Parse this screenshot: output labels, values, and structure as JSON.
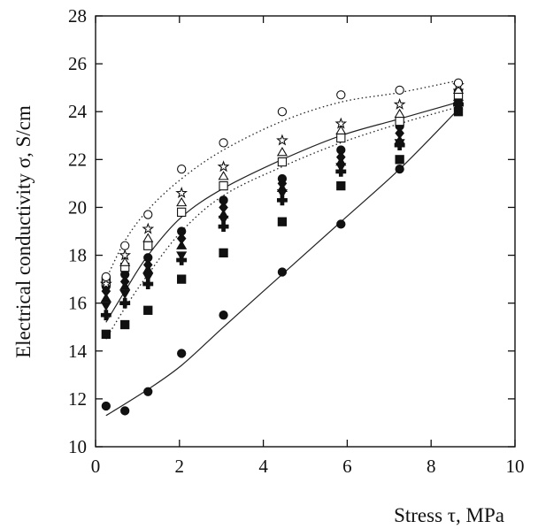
{
  "chart_data": {
    "type": "scatter",
    "xlabel": "Stress τ, MPa",
    "ylabel": "Electrical conductivity σ, S/cm",
    "xlim": [
      0,
      10
    ],
    "ylim": [
      10,
      28
    ],
    "x_ticks": [
      "0",
      "2",
      "4",
      "6",
      "8",
      "10"
    ],
    "y_ticks": [
      "10",
      "12",
      "14",
      "16",
      "18",
      "20",
      "22",
      "24",
      "26",
      "28"
    ],
    "grid": false,
    "x": [
      0.25,
      0.7,
      1.25,
      2.05,
      3.05,
      4.45,
      5.85,
      7.25,
      8.65
    ],
    "series": [
      {
        "marker": "filled-circle",
        "values": [
          11.7,
          11.5,
          12.3,
          13.9,
          15.5,
          17.3,
          19.3,
          21.6,
          24.1
        ]
      },
      {
        "marker": "filled-square",
        "values": [
          14.7,
          15.1,
          15.7,
          17.0,
          18.1,
          19.4,
          20.9,
          22.0,
          24.0
        ]
      },
      {
        "marker": "filled-plus",
        "values": [
          15.5,
          16.0,
          16.8,
          17.8,
          19.2,
          20.3,
          21.5,
          22.6,
          24.3
        ]
      },
      {
        "marker": "filled-triangle-down",
        "values": [
          15.9,
          16.4,
          17.1,
          18.0,
          19.5,
          20.6,
          21.7,
          22.7,
          24.8
        ]
      },
      {
        "marker": "filled-triangle-up",
        "values": [
          16.2,
          16.7,
          17.4,
          18.4,
          19.7,
          20.8,
          21.9,
          22.8,
          24.6
        ]
      },
      {
        "marker": "filled-diamond",
        "values": [
          16.5,
          16.9,
          17.6,
          18.7,
          20.0,
          21.0,
          22.1,
          23.1,
          24.4
        ]
      },
      {
        "marker": "filled-circle-b",
        "values": [
          16.7,
          17.2,
          17.9,
          19.0,
          20.3,
          21.2,
          22.4,
          23.4,
          24.5
        ]
      },
      {
        "marker": "open-square",
        "values": [
          16.9,
          17.5,
          18.4,
          19.8,
          20.9,
          21.9,
          22.9,
          23.6,
          24.7
        ]
      },
      {
        "marker": "open-triangle",
        "values": [
          17.0,
          17.7,
          18.7,
          20.2,
          21.3,
          22.3,
          23.2,
          23.9,
          24.9
        ]
      },
      {
        "marker": "open-star",
        "values": [
          16.8,
          18.0,
          19.1,
          20.6,
          21.7,
          22.8,
          23.5,
          24.3,
          25.1
        ]
      },
      {
        "marker": "open-circle",
        "values": [
          17.1,
          18.4,
          19.7,
          21.6,
          22.7,
          24.0,
          24.7,
          24.9,
          25.2
        ]
      }
    ],
    "curves": [
      {
        "style": "solid",
        "x": [
          0.25,
          1.25,
          2.05,
          3.05,
          4.45,
          5.85,
          7.25,
          8.65
        ],
        "values": [
          11.3,
          12.4,
          13.4,
          15.0,
          17.2,
          19.4,
          21.6,
          24.1
        ]
      },
      {
        "style": "solid",
        "x": [
          0.25,
          0.7,
          1.25,
          2.05,
          3.05,
          4.45,
          5.85,
          7.25,
          8.65
        ],
        "values": [
          15.2,
          16.5,
          18.0,
          19.6,
          20.8,
          22.0,
          23.0,
          23.7,
          24.4
        ]
      },
      {
        "style": "dotted",
        "x": [
          0.25,
          0.7,
          1.25,
          2.05,
          3.05,
          4.45,
          5.85,
          7.25,
          8.65
        ],
        "values": [
          17.0,
          18.6,
          19.9,
          21.2,
          22.4,
          23.6,
          24.4,
          24.8,
          25.3
        ]
      },
      {
        "style": "dotted",
        "x": [
          0.25,
          0.7,
          1.25,
          2.05,
          3.05,
          4.45,
          5.85,
          7.25,
          8.65
        ],
        "values": [
          14.5,
          15.8,
          17.2,
          19.0,
          20.5,
          21.7,
          22.7,
          23.5,
          24.2
        ]
      }
    ]
  }
}
